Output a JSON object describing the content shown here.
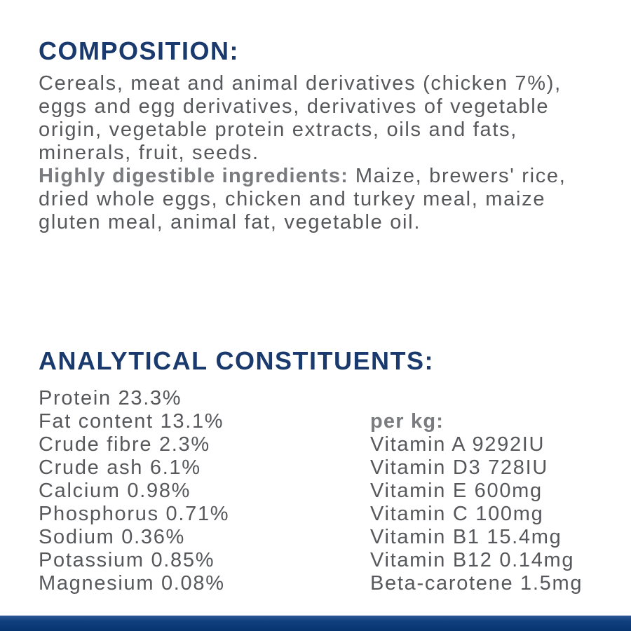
{
  "colors": {
    "heading_navy": "#1a3a6e",
    "body_gray": "#57585b",
    "bold_label_gray": "#7a7b7f",
    "bottom_bar_navy": "#0d3876",
    "background": "#ffffff"
  },
  "composition": {
    "heading": "COMPOSITION:",
    "lines": [
      "Cereals, meat and animal derivatives (chicken 7%),",
      "eggs and egg derivatives, derivatives of vegetable",
      "origin, vegetable protein extracts, oils and fats,",
      "minerals, fruit, seeds."
    ],
    "highly_digestible": {
      "label": "Highly digestible ingredients:",
      "first_line_rest": "Maize, brewers' rice,",
      "lines": [
        "dried whole eggs, chicken and turkey meal, maize",
        "gluten meal, animal fat, vegetable oil."
      ]
    }
  },
  "analytical": {
    "heading": "ANALYTICAL CONSTITUENTS:",
    "constituents": [
      {
        "name": "Protein",
        "value": "23.3%"
      },
      {
        "name": "Fat content",
        "value": "13.1%"
      },
      {
        "name": "Crude fibre",
        "value": "2.3%"
      },
      {
        "name": "Crude ash",
        "value": "6.1%"
      },
      {
        "name": "Calcium",
        "value": "0.98%"
      },
      {
        "name": "Phosphorus",
        "value": "0.71%"
      },
      {
        "name": "Sodium",
        "value": "0.36%"
      },
      {
        "name": "Potassium",
        "value": "0.85%"
      },
      {
        "name": "Magnesium",
        "value": "0.08%"
      }
    ],
    "per_kg": {
      "label": "per kg:",
      "items": [
        {
          "name": "Vitamin A",
          "value": "9292IU"
        },
        {
          "name": "Vitamin D3",
          "value": "728IU"
        },
        {
          "name": "Vitamin E",
          "value": "600mg"
        },
        {
          "name": "Vitamin C",
          "value": "100mg"
        },
        {
          "name": "Vitamin B1",
          "value": "15.4mg"
        },
        {
          "name": "Vitamin B12",
          "value": "0.14mg"
        },
        {
          "name": "Beta-carotene",
          "value": "1.5mg"
        }
      ]
    }
  }
}
